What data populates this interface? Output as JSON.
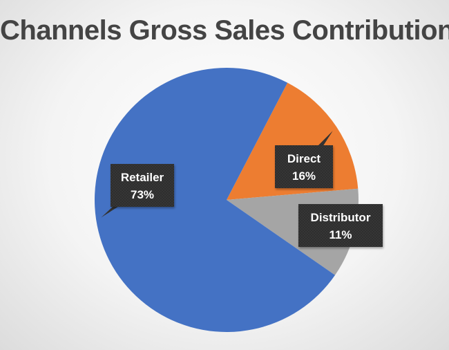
{
  "chart_data": {
    "type": "pie",
    "title": "Channels Gross Sales Contribution",
    "slices": [
      {
        "name": "Direct",
        "value": 16,
        "label": "16%",
        "color": "#ED7D31"
      },
      {
        "name": "Distributor",
        "value": 11,
        "label": "11%",
        "color": "#A5A5A5"
      },
      {
        "name": "Retailer",
        "value": 73,
        "label": "73%",
        "color": "#4472C4"
      }
    ],
    "legend": "none",
    "label_style": "dark callouts with category name and percentage"
  }
}
